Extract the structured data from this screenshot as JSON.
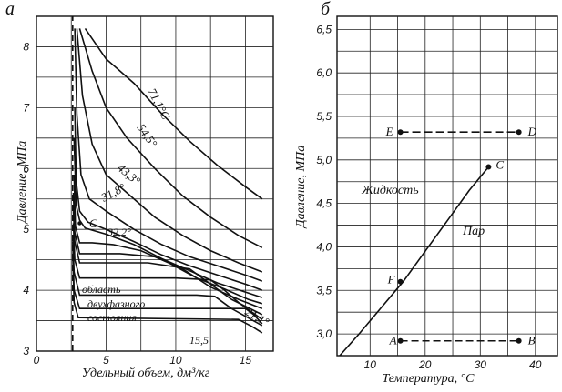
{
  "chart_data": [
    {
      "panel_label": "а",
      "type": "line",
      "xlabel": "Удельный объем, дм³/кг",
      "ylabel": "Давление, МПа",
      "xlim": [
        0,
        17
      ],
      "ylim": [
        3,
        8.5
      ],
      "x_ticks": [
        "0",
        "5",
        "10",
        "15"
      ],
      "y_ticks": [
        "3",
        "4",
        "5",
        "6",
        "7",
        "8"
      ],
      "grid": true,
      "isotherm_labels": [
        "71,1°C",
        "54,5°",
        "43,3°",
        "31,8°",
        "32,2°",
        "21,1°",
        "15,5"
      ],
      "critical_point_label": "C",
      "region_label_lines": [
        "область",
        "двухфазного",
        "состояния"
      ],
      "series": [
        {
          "name": "71,1°C",
          "points": [
            [
              3.5,
              8.3
            ],
            [
              5,
              7.8
            ],
            [
              7,
              7.4
            ],
            [
              9,
              6.9
            ],
            [
              11,
              6.45
            ],
            [
              13,
              6.05
            ],
            [
              15,
              5.7
            ],
            [
              16.2,
              5.5
            ]
          ]
        },
        {
          "name": "54,5°",
          "points": [
            [
              3.1,
              8.3
            ],
            [
              4,
              7.6
            ],
            [
              5,
              7.0
            ],
            [
              6.5,
              6.5
            ],
            [
              8.5,
              6.0
            ],
            [
              10.5,
              5.55
            ],
            [
              12.5,
              5.2
            ],
            [
              14.5,
              4.9
            ],
            [
              16.2,
              4.7
            ]
          ]
        },
        {
          "name": "43,3°",
          "points": [
            [
              2.9,
              8.3
            ],
            [
              3.3,
              7.2
            ],
            [
              4,
              6.4
            ],
            [
              5,
              5.9
            ],
            [
              6.5,
              5.6
            ],
            [
              8.5,
              5.2
            ],
            [
              10.5,
              4.9
            ],
            [
              12.5,
              4.65
            ],
            [
              14.5,
              4.45
            ],
            [
              16.2,
              4.3
            ]
          ]
        },
        {
          "name": "31,8°",
          "points": [
            [
              2.75,
              8.3
            ],
            [
              2.9,
              6.9
            ],
            [
              3.2,
              5.9
            ],
            [
              3.8,
              5.5
            ],
            [
              5,
              5.3
            ],
            [
              7,
              5.0
            ],
            [
              9,
              4.75
            ],
            [
              11,
              4.55
            ],
            [
              13,
              4.4
            ],
            [
              15,
              4.25
            ],
            [
              16.2,
              4.15
            ]
          ]
        },
        {
          "name": "",
          "points": [
            [
              2.75,
              7.0
            ],
            [
              2.85,
              5.8
            ],
            [
              3.1,
              5.3
            ],
            [
              3.7,
              5.12
            ],
            [
              5,
              5.0
            ],
            [
              7,
              4.8
            ],
            [
              9,
              4.58
            ],
            [
              11,
              4.4
            ],
            [
              13,
              4.25
            ],
            [
              15,
              4.1
            ],
            [
              16.2,
              4.0
            ]
          ]
        },
        {
          "name": "",
          "points": [
            [
              2.7,
              6.5
            ],
            [
              2.85,
              5.4
            ],
            [
              3.1,
              5.15
            ],
            [
              3.5,
              5.02
            ],
            [
              5,
              4.92
            ],
            [
              7,
              4.75
            ],
            [
              9,
              4.52
            ],
            [
              11,
              4.32
            ],
            [
              13,
              4.12
            ],
            [
              15,
              3.97
            ],
            [
              16.2,
              3.88
            ]
          ]
        },
        {
          "name": "",
          "points": [
            [
              2.7,
              5.9
            ],
            [
              2.8,
              5.05
            ],
            [
              3.1,
              4.78
            ],
            [
              4,
              4.78
            ],
            [
              5.5,
              4.75
            ],
            [
              7.5,
              4.65
            ],
            [
              9.5,
              4.45
            ],
            [
              11.5,
              4.2
            ],
            [
              13.5,
              4.02
            ],
            [
              15.2,
              3.85
            ],
            [
              16.2,
              3.78
            ]
          ]
        },
        {
          "name": "",
          "points": [
            [
              2.65,
              5.6
            ],
            [
              2.75,
              4.95
            ],
            [
              3.1,
              4.6
            ],
            [
              6,
              4.6
            ],
            [
              8.5,
              4.55
            ],
            [
              10.5,
              4.35
            ],
            [
              12.5,
              4.05
            ],
            [
              14.5,
              3.85
            ],
            [
              16.2,
              3.7
            ]
          ]
        },
        {
          "name": "",
          "points": [
            [
              2.65,
              5.3
            ],
            [
              2.75,
              4.8
            ],
            [
              3.1,
              4.45
            ],
            [
              8,
              4.45
            ],
            [
              11,
              4.35
            ],
            [
              12.5,
              4.1
            ],
            [
              14,
              3.85
            ],
            [
              16.2,
              3.6
            ]
          ]
        },
        {
          "name": "",
          "points": [
            [
              2.65,
              5.1
            ],
            [
              2.75,
              4.5
            ],
            [
              3.1,
              4.2
            ],
            [
              10,
              4.2
            ],
            [
              12.5,
              4.17
            ],
            [
              13.5,
              4.0
            ],
            [
              14.5,
              3.8
            ],
            [
              16.2,
              3.52
            ]
          ]
        },
        {
          "name": "",
          "points": [
            [
              2.6,
              4.9
            ],
            [
              2.7,
              4.3
            ],
            [
              3.1,
              3.92
            ],
            [
              11.5,
              3.92
            ],
            [
              12.8,
              3.9
            ],
            [
              14,
              3.7
            ],
            [
              16.2,
              3.42
            ]
          ]
        },
        {
          "name": "21,1°",
          "points": [
            [
              2.6,
              4.8
            ],
            [
              2.7,
              4.0
            ],
            [
              3.1,
              3.7
            ],
            [
              15,
              3.7
            ],
            [
              15.6,
              3.6
            ],
            [
              16.2,
              3.45
            ]
          ]
        },
        {
          "name": "15,5",
          "points": [
            [
              2.6,
              4.6
            ],
            [
              2.7,
              3.8
            ],
            [
              3.0,
              3.55
            ],
            [
              14.5,
              3.52
            ],
            [
              15.5,
              3.4
            ],
            [
              16.2,
              3.3
            ]
          ]
        },
        {
          "name": "",
          "points": [
            [
              2.6,
              3.0
            ],
            [
              2.6,
              8.5
            ]
          ]
        }
      ]
    },
    {
      "panel_label": "б",
      "type": "line",
      "xlabel": "Температура, °C",
      "ylabel": "Давление, МПа",
      "xlim": [
        4,
        44
      ],
      "ylim": [
        2.75,
        6.65
      ],
      "x_ticks": [
        "10",
        "20",
        "30",
        "40"
      ],
      "y_ticks": [
        "3,0",
        "3,5",
        "4,0",
        "4,5",
        "5,0",
        "5,5",
        "6,0",
        "6,5"
      ],
      "grid": true,
      "region_labels": [
        "Жидкость",
        "Пар"
      ],
      "saturation_curve": [
        [
          4.5,
          2.75
        ],
        [
          8,
          3.0
        ],
        [
          12,
          3.3
        ],
        [
          16,
          3.6
        ],
        [
          20,
          3.95
        ],
        [
          24,
          4.3
        ],
        [
          28,
          4.65
        ],
        [
          31.5,
          4.92
        ]
      ],
      "points": [
        {
          "label": "A",
          "x": 15.5,
          "y": 2.92
        },
        {
          "label": "B",
          "x": 37,
          "y": 2.92
        },
        {
          "label": "C",
          "x": 31.5,
          "y": 4.92
        },
        {
          "label": "D",
          "x": 37,
          "y": 5.32
        },
        {
          "label": "E",
          "x": 15.5,
          "y": 5.32
        },
        {
          "label": "F",
          "x": 15.5,
          "y": 3.6
        }
      ]
    }
  ]
}
